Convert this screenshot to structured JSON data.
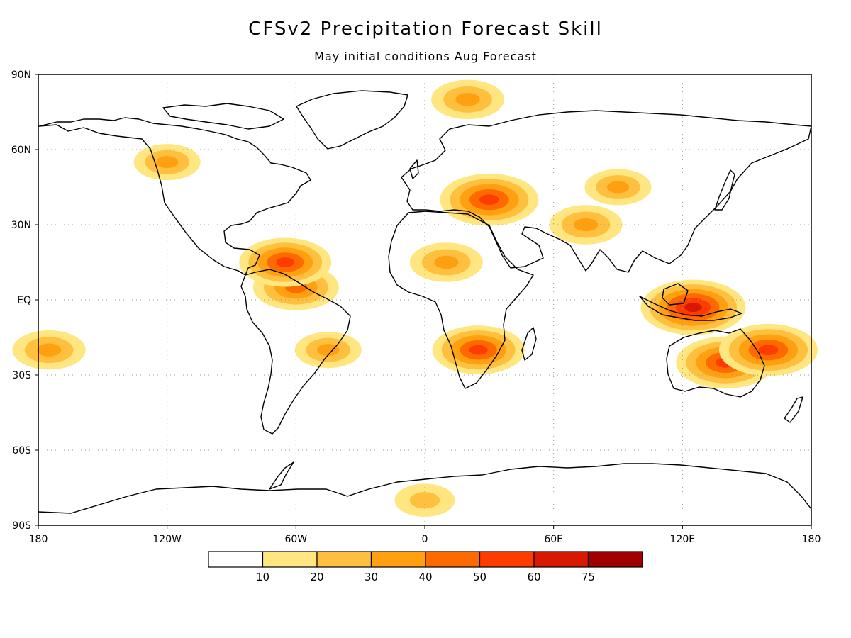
{
  "title": "CFSv2 Precipitation Forecast Skill",
  "subtitle": "May initial conditions  Aug Forecast",
  "axes": {
    "x_ticks": [
      {
        "lon": -180,
        "label": "180"
      },
      {
        "lon": -120,
        "label": "120W"
      },
      {
        "lon": -60,
        "label": "60W"
      },
      {
        "lon": 0,
        "label": "0"
      },
      {
        "lon": 60,
        "label": "60E"
      },
      {
        "lon": 120,
        "label": "120E"
      },
      {
        "lon": 180,
        "label": "180"
      }
    ],
    "y_ticks": [
      {
        "lat": 90,
        "label": "90N"
      },
      {
        "lat": 60,
        "label": "60N"
      },
      {
        "lat": 30,
        "label": "30N"
      },
      {
        "lat": 0,
        "label": "EQ"
      },
      {
        "lat": -30,
        "label": "30S"
      },
      {
        "lat": -60,
        "label": "60S"
      },
      {
        "lat": -90,
        "label": "90S"
      }
    ]
  },
  "colorbar": {
    "bins": [
      {
        "color": "#ffffff"
      },
      {
        "color": "#ffe680"
      },
      {
        "color": "#ffc040"
      },
      {
        "color": "#ffa010"
      },
      {
        "color": "#ff6a00"
      },
      {
        "color": "#ff3c00"
      },
      {
        "color": "#d81800"
      },
      {
        "color": "#a00000"
      }
    ],
    "labels": [
      "10",
      "20",
      "30",
      "40",
      "50",
      "60",
      "75"
    ]
  },
  "chart_data": {
    "type": "heatmap",
    "title": "CFSv2 Precipitation Forecast Skill",
    "subtitle": "May initial conditions  Aug Forecast",
    "xlim": [
      -180,
      180
    ],
    "ylim": [
      -90,
      90
    ],
    "grid": true,
    "levels": [
      10,
      20,
      30,
      40,
      50,
      60,
      75
    ],
    "regions": [
      {
        "lon": 125,
        "lat": -3,
        "value": 60
      },
      {
        "lon": 140,
        "lat": -25,
        "value": 55
      },
      {
        "lon": 160,
        "lat": -20,
        "value": 55
      },
      {
        "lon": -60,
        "lat": 5,
        "value": 45
      },
      {
        "lon": -65,
        "lat": 15,
        "value": 50
      },
      {
        "lon": 25,
        "lat": -20,
        "value": 50
      },
      {
        "lon": 30,
        "lat": 40,
        "value": 55
      },
      {
        "lon": 10,
        "lat": 15,
        "value": 35
      },
      {
        "lon": -120,
        "lat": 55,
        "value": 30
      },
      {
        "lon": -45,
        "lat": -20,
        "value": 30
      },
      {
        "lon": 0,
        "lat": -80,
        "value": 25
      },
      {
        "lon": 90,
        "lat": 45,
        "value": 30
      },
      {
        "lon": 75,
        "lat": 30,
        "value": 35
      },
      {
        "lon": 20,
        "lat": 80,
        "value": 35
      },
      {
        "lon": -175,
        "lat": -20,
        "value": 35
      }
    ]
  }
}
